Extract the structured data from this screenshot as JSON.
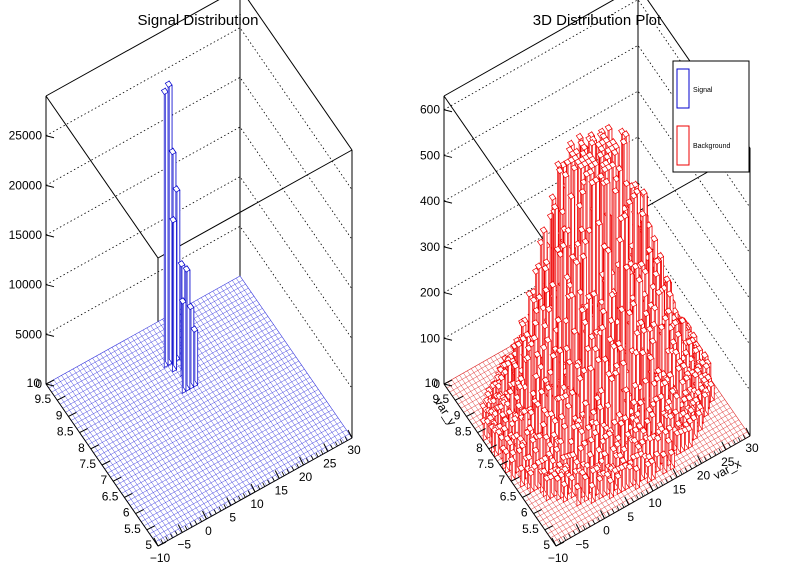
{
  "chart_data": [
    {
      "type": "bar3d",
      "title": "Signal Distribution",
      "xlabel": "",
      "ylabel": "",
      "zlim": [
        0,
        29000
      ],
      "xlim": [
        -10,
        30
      ],
      "ylim": [
        5,
        10
      ],
      "z_ticks": [
        "0",
        "5000",
        "10000",
        "15000",
        "20000",
        "25000"
      ],
      "x_ticks": [
        "−10",
        "−5",
        "0",
        "5",
        "10",
        "15",
        "20",
        "25",
        "30"
      ],
      "y_ticks": [
        "5",
        "5.5",
        "6",
        "6.5",
        "7",
        "7.5",
        "8",
        "8.5",
        "9",
        "9.5",
        "10"
      ],
      "grid": true,
      "color": "#0000cc",
      "bins": [
        {
          "x": 9.3,
          "y": 8.9,
          "z": 27500
        },
        {
          "x": 10.1,
          "y": 8.9,
          "z": 28000
        },
        {
          "x": 10.9,
          "y": 8.9,
          "z": 21000
        },
        {
          "x": 11.7,
          "y": 8.9,
          "z": 17000
        },
        {
          "x": 9.3,
          "y": 8.1,
          "z": 9000
        },
        {
          "x": 10.1,
          "y": 8.1,
          "z": 12000
        },
        {
          "x": 10.9,
          "y": 8.1,
          "z": 8000
        },
        {
          "x": 11.7,
          "y": 8.1,
          "z": 5500
        },
        {
          "x": 10.1,
          "y": 8.7,
          "z": 15000
        },
        {
          "x": 10.9,
          "y": 8.5,
          "z": 11000
        }
      ]
    },
    {
      "type": "bar3d",
      "title": "3D Distribution Plot",
      "xlabel": "var_x",
      "ylabel": "var_y",
      "zlim": [
        0,
        630
      ],
      "xlim": [
        -10,
        30
      ],
      "ylim": [
        5,
        10
      ],
      "z_ticks": [
        "0",
        "100",
        "200",
        "300",
        "400",
        "500",
        "600"
      ],
      "x_ticks": [
        "−10",
        "−5",
        "0",
        "5",
        "10",
        "15",
        "20",
        "25",
        "30"
      ],
      "y_ticks": [
        "5",
        "5.5",
        "6",
        "6.5",
        "7",
        "7.5",
        "8",
        "8.5",
        "9",
        "9.5",
        "10"
      ],
      "grid": true,
      "color": "#ee0000",
      "center": {
        "x": 10,
        "y": 7.5
      },
      "peak": 560,
      "legend": {
        "position": "top-right",
        "entries": [
          {
            "label": "Signal",
            "color": "#0000cc"
          },
          {
            "label": "Background",
            "color": "#ee0000"
          }
        ]
      }
    }
  ]
}
